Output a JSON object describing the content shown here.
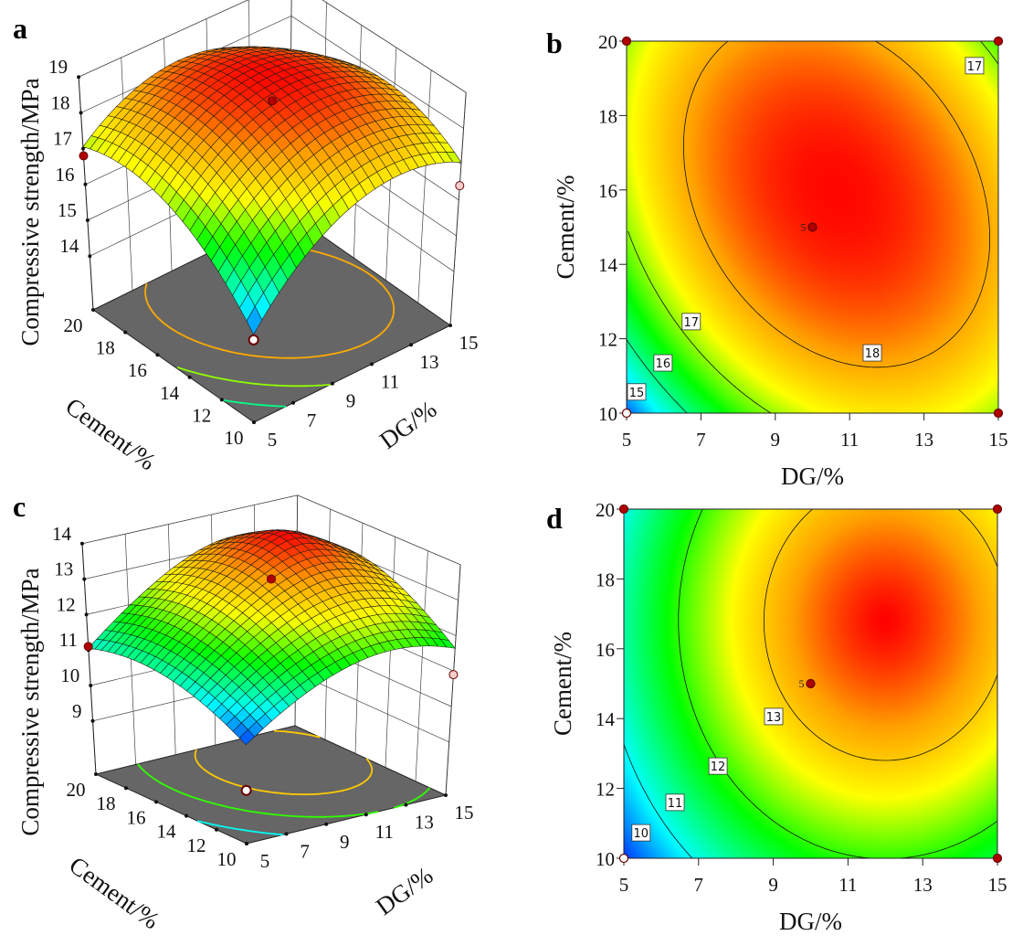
{
  "colormap": {
    "low": "#0000ff",
    "mid_low": "#00ffff",
    "mid": "#00ff00",
    "mid_high": "#ffff00",
    "high": "#ff0000",
    "floor": "#666666",
    "design_point": "#b00000",
    "point_below_surface": "#f6cccc",
    "point_low": "#ffffff"
  },
  "chart_data": [
    {
      "panel": "a",
      "type": "surface3d",
      "xlabel": "DG/%",
      "ylabel": "Cement/%",
      "zlabel": "Compressive strength/MPa",
      "xlim": [
        5,
        15
      ],
      "ylim": [
        10,
        20
      ],
      "zlim": [
        12.5,
        19
      ],
      "xticks": [
        "5",
        "7",
        "9",
        "11",
        "13",
        "15"
      ],
      "yticks": [
        "10",
        "12",
        "14",
        "16",
        "18",
        "20"
      ],
      "zticks": [
        "14",
        "15",
        "16",
        "17",
        "18",
        "19"
      ],
      "floor_contour_levels": [
        15,
        16,
        17,
        18
      ],
      "design_points": [
        {
          "x": 10,
          "y": 15,
          "z": 18.55,
          "marker": "above"
        },
        {
          "x": 5,
          "y": 20,
          "z": 16.8,
          "marker": "above"
        },
        {
          "x": 15,
          "y": 10,
          "z": 16.4,
          "marker": "below"
        },
        {
          "x": 5,
          "y": 10,
          "z": 14.8,
          "marker": "low"
        }
      ]
    },
    {
      "panel": "b",
      "type": "contour",
      "xlabel": "DG/%",
      "ylabel": "Cement/%",
      "xlim": [
        5,
        15
      ],
      "ylim": [
        10,
        20
      ],
      "xticks": [
        "5",
        "7",
        "9",
        "11",
        "13",
        "15"
      ],
      "yticks": [
        "10",
        "12",
        "14",
        "16",
        "18",
        "20"
      ],
      "contour_levels": [
        15,
        16,
        17,
        18
      ],
      "contour_labels": [
        "17",
        "17",
        "16",
        "15",
        "18"
      ],
      "design_points": [
        {
          "x": 5,
          "y": 10,
          "marker": "low"
        },
        {
          "x": 5,
          "y": 20,
          "marker": "above"
        },
        {
          "x": 15,
          "y": 20,
          "marker": "above"
        },
        {
          "x": 15,
          "y": 10,
          "marker": "above"
        },
        {
          "x": 10,
          "y": 15,
          "marker": "above",
          "label": "5"
        }
      ]
    },
    {
      "panel": "c",
      "type": "surface3d",
      "xlabel": "DG/%",
      "ylabel": "Cement/%",
      "zlabel": "Compressive strength/MPa",
      "xlim": [
        5,
        15
      ],
      "ylim": [
        10,
        20
      ],
      "zlim": [
        7.5,
        14
      ],
      "xticks": [
        "5",
        "7",
        "9",
        "11",
        "13",
        "15"
      ],
      "yticks": [
        "10",
        "12",
        "14",
        "16",
        "18",
        "20"
      ],
      "zticks": [
        "9",
        "10",
        "11",
        "12",
        "13",
        "14"
      ],
      "floor_contour_levels": [
        10,
        11,
        12,
        13
      ],
      "design_points": [
        {
          "x": 10,
          "y": 15,
          "z": 13.3,
          "marker": "above"
        },
        {
          "x": 5,
          "y": 20,
          "z": 11.1,
          "marker": "above"
        },
        {
          "x": 15,
          "y": 10,
          "z": 10.9,
          "marker": "below"
        },
        {
          "x": 5,
          "y": 10,
          "z": 9.0,
          "marker": "low"
        }
      ]
    },
    {
      "panel": "d",
      "type": "contour",
      "xlabel": "DG/%",
      "ylabel": "Cement/%",
      "xlim": [
        5,
        15
      ],
      "ylim": [
        10,
        20
      ],
      "xticks": [
        "5",
        "7",
        "9",
        "11",
        "13",
        "15"
      ],
      "yticks": [
        "10",
        "12",
        "14",
        "16",
        "18",
        "20"
      ],
      "contour_levels": [
        10,
        11,
        12,
        13
      ],
      "contour_labels": [
        "13",
        "12",
        "11",
        "10"
      ],
      "design_points": [
        {
          "x": 5,
          "y": 10,
          "marker": "low"
        },
        {
          "x": 5,
          "y": 20,
          "marker": "above"
        },
        {
          "x": 15,
          "y": 20,
          "marker": "above"
        },
        {
          "x": 15,
          "y": 10,
          "marker": "above"
        },
        {
          "x": 10,
          "y": 15,
          "marker": "above",
          "label": "5"
        }
      ]
    }
  ]
}
